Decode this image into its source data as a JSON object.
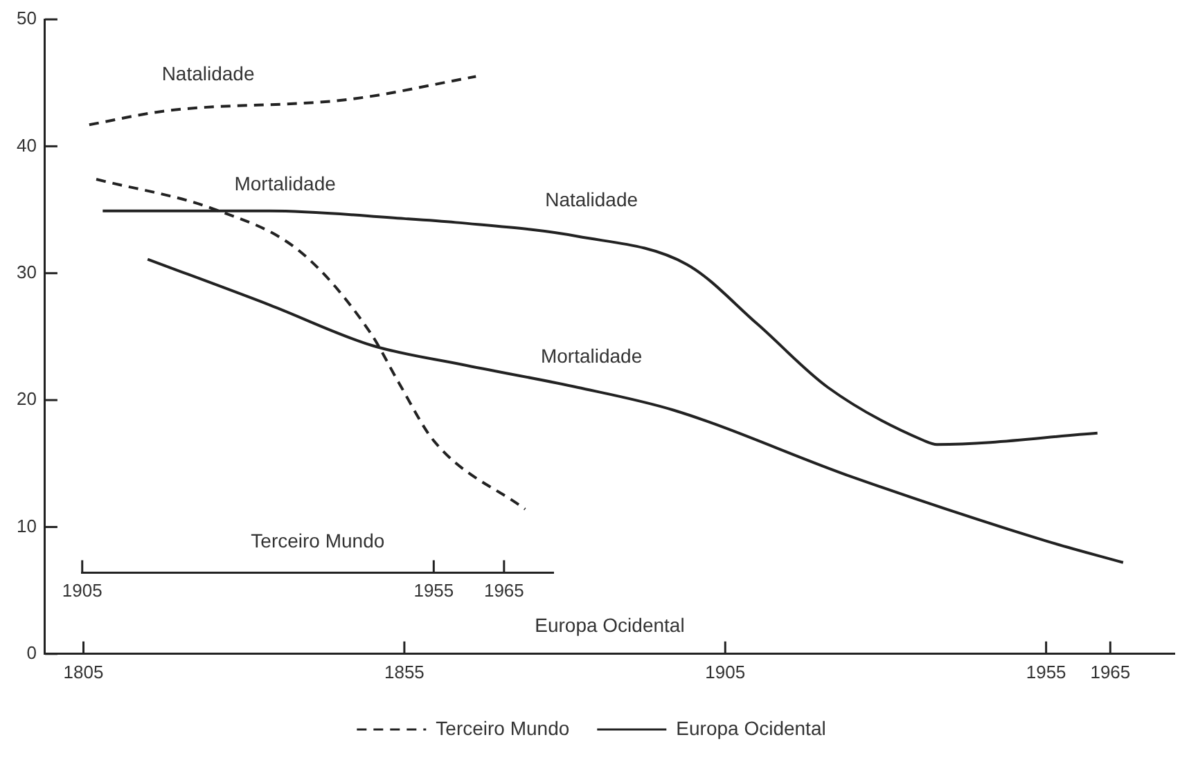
{
  "chart_data": {
    "type": "line",
    "xlabel": "Europa Ocidental",
    "x2label": "Terceiro Mundo",
    "xlim": [
      1799,
      1975
    ],
    "xticks": [
      1805,
      1855,
      1905,
      1955,
      1965
    ],
    "x2lim": [
      1905,
      1972
    ],
    "x2ticks": [
      1905,
      1955,
      1965
    ],
    "ylim": [
      0,
      50
    ],
    "yticks": [
      0,
      10,
      20,
      30,
      40,
      50
    ],
    "grid": false,
    "legend": "bottom",
    "marker": "none",
    "annotations": [
      "Natalidade",
      "Mortalidade",
      "Natalidade",
      "Mortalidade"
    ],
    "series": [
      {
        "name": "Terceiro Mundo",
        "color": "#222222",
        "axis": "x2",
        "line_style": "dashed",
        "x": [
          1906,
          1917,
          1943,
          1961
        ],
        "values": [
          41.7,
          42.8,
          43.7,
          45.5
        ]
      },
      {
        "color": "#222222",
        "axis": "x2",
        "line_style": "dashed",
        "x": [
          1907,
          1924,
          1936,
          1946,
          1950,
          1955,
          1968
        ],
        "values": [
          37.4,
          35.0,
          31.7,
          25.3,
          21.4,
          16.8,
          11.4
        ]
      },
      {
        "name": "Europa Ocidental",
        "color": "#222222",
        "line_style": "solid",
        "x": [
          1808,
          1834,
          1855,
          1863,
          1882,
          1899,
          1910,
          1921,
          1936,
          1938,
          1963
        ],
        "values": [
          34.9,
          34.9,
          34.3,
          34.0,
          32.9,
          30.7,
          26.0,
          21.0,
          16.8,
          16.5,
          17.4
        ]
      },
      {
        "color": "#222222",
        "line_style": "solid",
        "x": [
          1815,
          1834,
          1850,
          1864,
          1882,
          1897,
          1925,
          1955,
          1967
        ],
        "values": [
          31.1,
          27.5,
          24.3,
          22.8,
          21.0,
          19.2,
          13.9,
          8.9,
          7.2
        ]
      }
    ]
  }
}
